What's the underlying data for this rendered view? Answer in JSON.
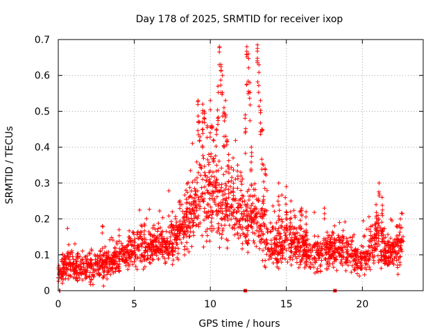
{
  "chart_data": {
    "type": "scatter",
    "title": "Day 178 of 2025, SRMTID for receiver ixop",
    "xlabel": "GPS time / hours",
    "ylabel": "SRMTID / TECUs",
    "xlim": [
      0,
      24
    ],
    "ylim": [
      0,
      0.7
    ],
    "grid": true,
    "marker": "+",
    "marker_color": "#ff0000",
    "x_ticks": [
      0,
      5,
      10,
      15,
      20
    ],
    "x_tick_labels": [
      "0",
      "5",
      "10",
      "15",
      "20"
    ],
    "y_ticks": [
      0,
      0.1,
      0.2,
      0.3,
      0.4,
      0.5,
      0.6,
      0.7
    ],
    "y_tick_labels": [
      "0",
      "0.1",
      "0.2",
      "0.3",
      "0.4",
      "0.5",
      "0.6",
      "0.7"
    ],
    "bottom_markers": [
      12.3,
      18.2
    ],
    "envelope": [
      [
        0.0,
        0.045,
        0.02
      ],
      [
        0.5,
        0.07,
        0.03
      ],
      [
        1.0,
        0.065,
        0.03
      ],
      [
        1.5,
        0.06,
        0.025
      ],
      [
        2.0,
        0.065,
        0.03
      ],
      [
        2.5,
        0.06,
        0.03
      ],
      [
        3.0,
        0.075,
        0.035
      ],
      [
        3.5,
        0.08,
        0.03
      ],
      [
        4.0,
        0.095,
        0.03
      ],
      [
        4.5,
        0.105,
        0.035
      ],
      [
        5.0,
        0.115,
        0.04
      ],
      [
        5.5,
        0.12,
        0.04
      ],
      [
        6.0,
        0.12,
        0.035
      ],
      [
        6.5,
        0.125,
        0.035
      ],
      [
        7.0,
        0.13,
        0.04
      ],
      [
        7.5,
        0.14,
        0.04
      ],
      [
        8.0,
        0.15,
        0.04
      ],
      [
        8.5,
        0.2,
        0.06
      ],
      [
        9.0,
        0.24,
        0.07
      ],
      [
        9.5,
        0.27,
        0.08
      ],
      [
        10.0,
        0.27,
        0.08
      ],
      [
        10.5,
        0.26,
        0.08
      ],
      [
        11.0,
        0.24,
        0.07
      ],
      [
        11.5,
        0.22,
        0.06
      ],
      [
        12.0,
        0.21,
        0.06
      ],
      [
        12.5,
        0.2,
        0.06
      ],
      [
        13.0,
        0.2,
        0.06
      ],
      [
        13.5,
        0.18,
        0.06
      ],
      [
        14.0,
        0.13,
        0.05
      ],
      [
        14.5,
        0.12,
        0.045
      ],
      [
        15.0,
        0.14,
        0.05
      ],
      [
        15.5,
        0.15,
        0.05
      ],
      [
        16.0,
        0.13,
        0.045
      ],
      [
        16.5,
        0.1,
        0.035
      ],
      [
        17.0,
        0.1,
        0.035
      ],
      [
        17.5,
        0.11,
        0.04
      ],
      [
        18.0,
        0.11,
        0.035
      ],
      [
        18.5,
        0.12,
        0.04
      ],
      [
        19.0,
        0.1,
        0.035
      ],
      [
        19.5,
        0.095,
        0.03
      ],
      [
        20.0,
        0.09,
        0.03
      ],
      [
        20.5,
        0.11,
        0.04
      ],
      [
        21.0,
        0.15,
        0.05
      ],
      [
        21.5,
        0.11,
        0.04
      ],
      [
        22.0,
        0.1,
        0.035
      ],
      [
        22.5,
        0.11,
        0.04
      ],
      [
        22.7,
        0.12,
        0.04
      ]
    ],
    "peaks": [
      [
        9.2,
        0.53
      ],
      [
        9.3,
        0.47
      ],
      [
        9.5,
        0.52
      ],
      [
        9.6,
        0.5
      ],
      [
        9.8,
        0.46
      ],
      [
        9.9,
        0.38
      ],
      [
        10.0,
        0.53
      ],
      [
        10.1,
        0.46
      ],
      [
        10.2,
        0.42
      ],
      [
        10.4,
        0.45
      ],
      [
        10.5,
        0.57
      ],
      [
        10.6,
        0.68
      ],
      [
        10.7,
        0.63
      ],
      [
        10.8,
        0.6
      ],
      [
        10.9,
        0.51
      ],
      [
        11.0,
        0.53
      ],
      [
        11.1,
        0.42
      ],
      [
        11.2,
        0.38
      ],
      [
        11.5,
        0.37
      ],
      [
        11.8,
        0.35
      ],
      [
        12.0,
        0.33
      ],
      [
        12.3,
        0.49
      ],
      [
        12.4,
        0.68
      ],
      [
        12.5,
        0.66
      ],
      [
        12.6,
        0.58
      ],
      [
        12.7,
        0.4
      ],
      [
        13.1,
        0.685
      ],
      [
        13.2,
        0.63
      ],
      [
        13.3,
        0.53
      ],
      [
        13.4,
        0.45
      ],
      [
        13.5,
        0.35
      ],
      [
        13.6,
        0.34
      ],
      [
        14.5,
        0.3
      ],
      [
        15.0,
        0.29
      ],
      [
        15.3,
        0.25
      ],
      [
        16.0,
        0.23
      ],
      [
        16.3,
        0.22
      ],
      [
        17.5,
        0.23
      ],
      [
        18.5,
        0.19
      ],
      [
        20.9,
        0.24
      ],
      [
        21.1,
        0.3
      ],
      [
        21.3,
        0.26
      ],
      [
        22.3,
        0.18
      ],
      [
        22.5,
        0.2
      ],
      [
        0.1,
        0.0
      ],
      [
        4.0,
        0.17
      ],
      [
        2.9,
        0.18
      ],
      [
        7.5,
        0.22
      ],
      [
        8.0,
        0.25
      ],
      [
        8.4,
        0.28
      ]
    ]
  }
}
